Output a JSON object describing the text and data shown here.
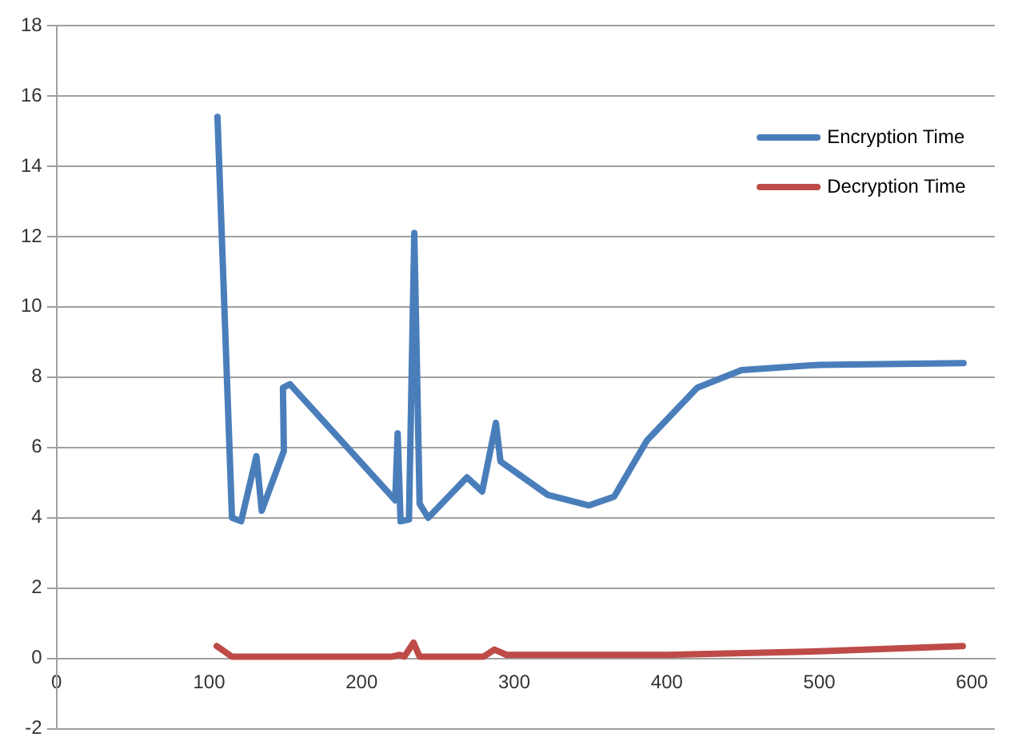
{
  "chart_data": {
    "type": "line",
    "legend": "top right",
    "grid": "y",
    "marker": "none",
    "line_style": "solid",
    "xlim": [
      0,
      615
    ],
    "xticks": [
      0,
      100,
      200,
      300,
      400,
      500,
      600
    ],
    "ylim": [
      -2,
      18
    ],
    "yticks": [
      -2,
      0,
      2,
      4,
      6,
      8,
      10,
      12,
      14,
      16,
      18
    ],
    "series": [
      {
        "name": "Encryption Time",
        "color": "#4a7ebb",
        "x": [
          105.5,
          115,
          121,
          131,
          134.5,
          149,
          148.4,
          153,
          222,
          223.6,
          225.5,
          231,
          234.5,
          238,
          243.6,
          269,
          279,
          288,
          291,
          322,
          349,
          365.5,
          387,
          420,
          449,
          500,
          594.5
        ],
        "values": [
          15.4,
          4.0,
          3.9,
          5.75,
          4.2,
          5.9,
          7.7,
          7.8,
          4.5,
          6.4,
          3.9,
          3.95,
          12.1,
          4.4,
          4.0,
          5.15,
          4.75,
          6.7,
          5.6,
          4.65,
          4.35,
          4.6,
          6.2,
          7.7,
          8.2,
          8.35,
          8.4
        ]
      },
      {
        "name": "Decryption Time",
        "color": "#be4b48",
        "x": [
          105,
          115,
          220,
          225,
          228,
          234,
          238,
          280,
          287,
          295,
          400,
          500,
          594
        ],
        "values": [
          0.35,
          0.05,
          0.05,
          0.1,
          0.05,
          0.45,
          0.05,
          0.05,
          0.25,
          0.1,
          0.1,
          0.2,
          0.35
        ]
      }
    ]
  }
}
